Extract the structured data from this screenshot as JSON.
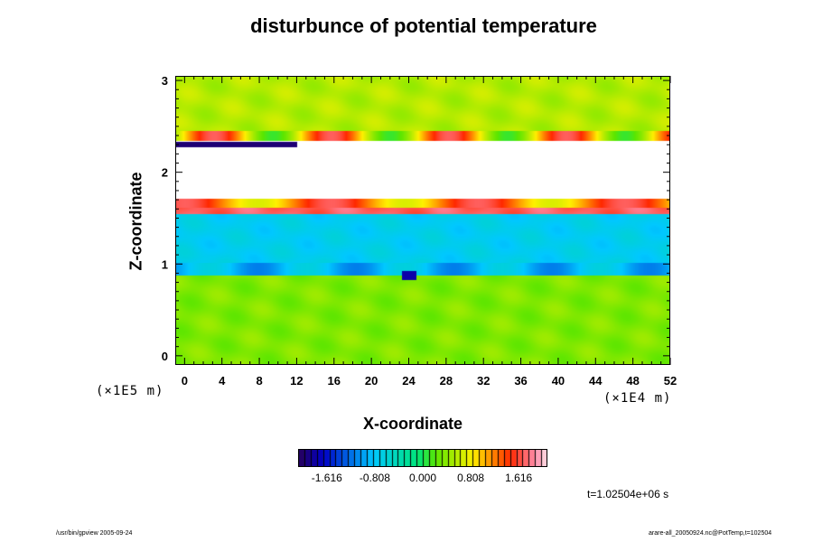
{
  "chart_data": {
    "type": "heatmap",
    "title": "disturbunce of potential temperature",
    "xlabel": "X-coordinate",
    "ylabel": "Z-coordinate",
    "x_unit": "(×1E4 m)",
    "z_unit": "(×1E5 m)",
    "xlim": [
      -1,
      52
    ],
    "ylim": [
      -0.1,
      3.05
    ],
    "x_ticks": [
      "0",
      "4",
      "8",
      "12",
      "16",
      "20",
      "24",
      "28",
      "32",
      "36",
      "40",
      "44",
      "48",
      "52"
    ],
    "y_ticks": [
      "0",
      "1",
      "2",
      "3"
    ],
    "colorbar": {
      "range": [
        -2.1,
        2.1
      ],
      "tick_labels": [
        "-1.616",
        "-0.808",
        "0.000",
        "0.808",
        "1.616"
      ],
      "colormap": "rainbow"
    },
    "time_label": "t=1.02504e+06 s",
    "field_regions": [
      {
        "z": [
          2.4,
          3.05
        ],
        "value": 0.55
      },
      {
        "z": [
          1.7,
          2.35
        ],
        "value": 2.6
      },
      {
        "z": [
          1.55,
          1.7
        ],
        "value": 1.7
      },
      {
        "z": [
          1.0,
          1.55
        ],
        "value": -0.75
      },
      {
        "z": [
          -0.1,
          0.9
        ],
        "value": 0.35
      }
    ]
  },
  "footer": {
    "left": "/usr/bin/gpview 2005-09-24",
    "right": "arare-all_20050924.nc@PotTemp,t=102504"
  }
}
